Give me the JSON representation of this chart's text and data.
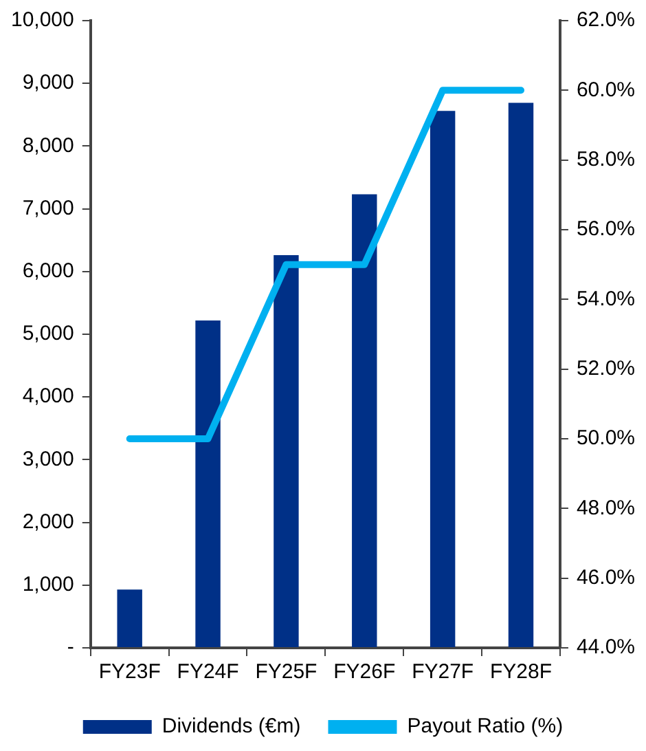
{
  "chart_data": {
    "type": "bar",
    "categories": [
      "FY23F",
      "FY24F",
      "FY25F",
      "FY26F",
      "FY27F",
      "FY28F"
    ],
    "series": [
      {
        "name": "Dividends (€m)",
        "color": "#003087",
        "values": [
          930,
          5220,
          6260,
          7230,
          8560,
          8690
        ]
      },
      {
        "name": "Payout Ratio (%)",
        "type": "line",
        "axis": "y2",
        "color": "#00b0f0",
        "values": [
          50,
          50,
          55,
          55,
          60,
          60
        ]
      }
    ],
    "ylim": [
      0,
      10000
    ],
    "yticks": [
      {
        "value": 0,
        "label": "-"
      },
      {
        "value": 1000,
        "label": "1,000"
      },
      {
        "value": 2000,
        "label": "2,000"
      },
      {
        "value": 3000,
        "label": "3,000"
      },
      {
        "value": 4000,
        "label": "4,000"
      },
      {
        "value": 5000,
        "label": "5,000"
      },
      {
        "value": 6000,
        "label": "6,000"
      },
      {
        "value": 7000,
        "label": "7,000"
      },
      {
        "value": 8000,
        "label": "8,000"
      },
      {
        "value": 9000,
        "label": "9,000"
      },
      {
        "value": 10000,
        "label": "10,000"
      }
    ],
    "y2lim": [
      44,
      62
    ],
    "y2ticks": [
      {
        "value": 44,
        "label": "44.0%"
      },
      {
        "value": 46,
        "label": "46.0%"
      },
      {
        "value": 48,
        "label": "48.0%"
      },
      {
        "value": 50,
        "label": "50.0%"
      },
      {
        "value": 52,
        "label": "52.0%"
      },
      {
        "value": 54,
        "label": "54.0%"
      },
      {
        "value": 56,
        "label": "56.0%"
      },
      {
        "value": 58,
        "label": "58.0%"
      },
      {
        "value": 60,
        "label": "60.0%"
      },
      {
        "value": 62,
        "label": "62.0%"
      }
    ],
    "grid": false,
    "legend": "bottom",
    "marker": "none"
  }
}
